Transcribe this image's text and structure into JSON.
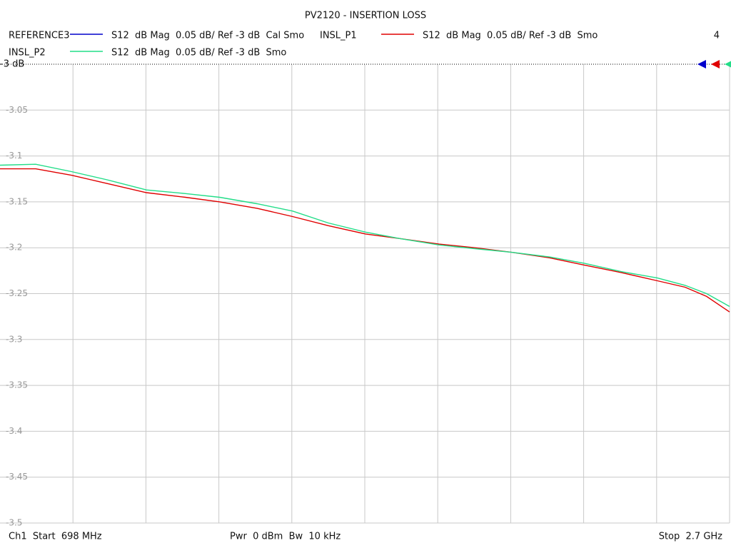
{
  "chart_data": {
    "type": "line",
    "title": "PV2120 - INSERTION LOSS",
    "channel_number": "4",
    "start_label": "Ch1  Start  698 MHz",
    "power_label": "Pwr  0 dBm  Bw  10 kHz",
    "stop_label": "Stop  2.7 GHz",
    "xlim": [
      698,
      2700
    ],
    "ylim": [
      -3.5,
      -3
    ],
    "yticks": [
      {
        "value": -3,
        "label": "-3 dB"
      },
      -3.05,
      -3.1,
      -3.15,
      -3.2,
      -3.25,
      -3.3,
      -3.35,
      -3.4,
      -3.45,
      -3.5
    ],
    "grid": true,
    "x": [
      698,
      796,
      894,
      992,
      1100,
      1207,
      1301,
      1403,
      1501,
      1599,
      1701,
      1795,
      1903,
      2001,
      2102,
      2206,
      2302,
      2402,
      2502,
      2578,
      2637,
      2700
    ],
    "series": [
      {
        "name": "REFERENCE3",
        "description": "S12  dB Mag  0.05 dB/ Ref -3 dB  Cal Smo",
        "color": "#0000cc"
      },
      {
        "name": "INSL_P1",
        "description": "S12  dB Mag  0.05 dB/ Ref -3 dB  Smo",
        "color": "#e00000",
        "values": [
          -3.114,
          -3.114,
          -3.121,
          -3.13,
          -3.14,
          -3.145,
          -3.15,
          -3.157,
          -3.166,
          -3.176,
          -3.185,
          -3.19,
          -3.196,
          -3.2,
          -3.205,
          -3.211,
          -3.219,
          -3.227,
          -3.236,
          -3.243,
          -3.253,
          -3.27
        ]
      },
      {
        "name": "INSL_P2",
        "description": "S12  dB Mag  0.05 dB/ Ref -3 dB  Smo",
        "color": "#22dd88",
        "values": [
          -3.11,
          -3.109,
          -3.117,
          -3.126,
          -3.137,
          -3.141,
          -3.145,
          -3.152,
          -3.16,
          -3.173,
          -3.183,
          -3.19,
          -3.197,
          -3.201,
          -3.205,
          -3.21,
          -3.217,
          -3.226,
          -3.233,
          -3.241,
          -3.25,
          -3.264
        ]
      }
    ]
  }
}
